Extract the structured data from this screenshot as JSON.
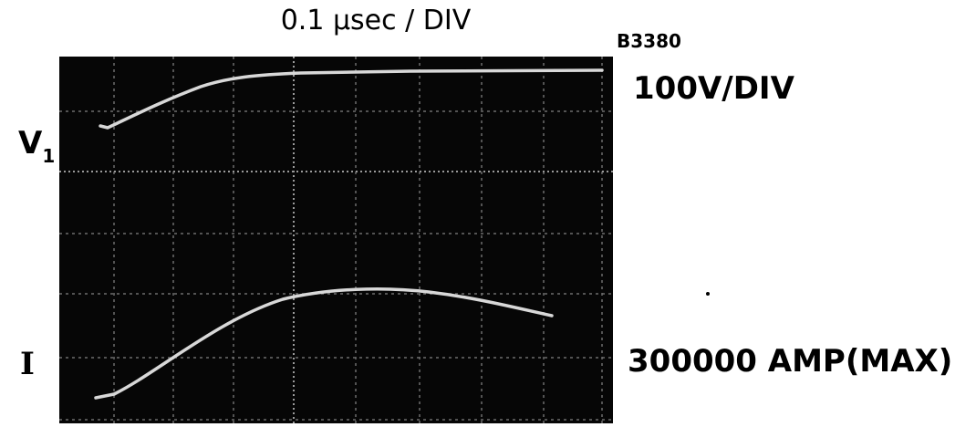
{
  "time_scale": "0.1 µsec / DIV",
  "figure_id": "B3380",
  "voltage_scale": "100V/DIV",
  "current_scale": "300000 AMP(MAX)",
  "trace_labels": [
    {
      "symbol": "V",
      "subscript": "1"
    },
    {
      "symbol": "I"
    }
  ]
}
